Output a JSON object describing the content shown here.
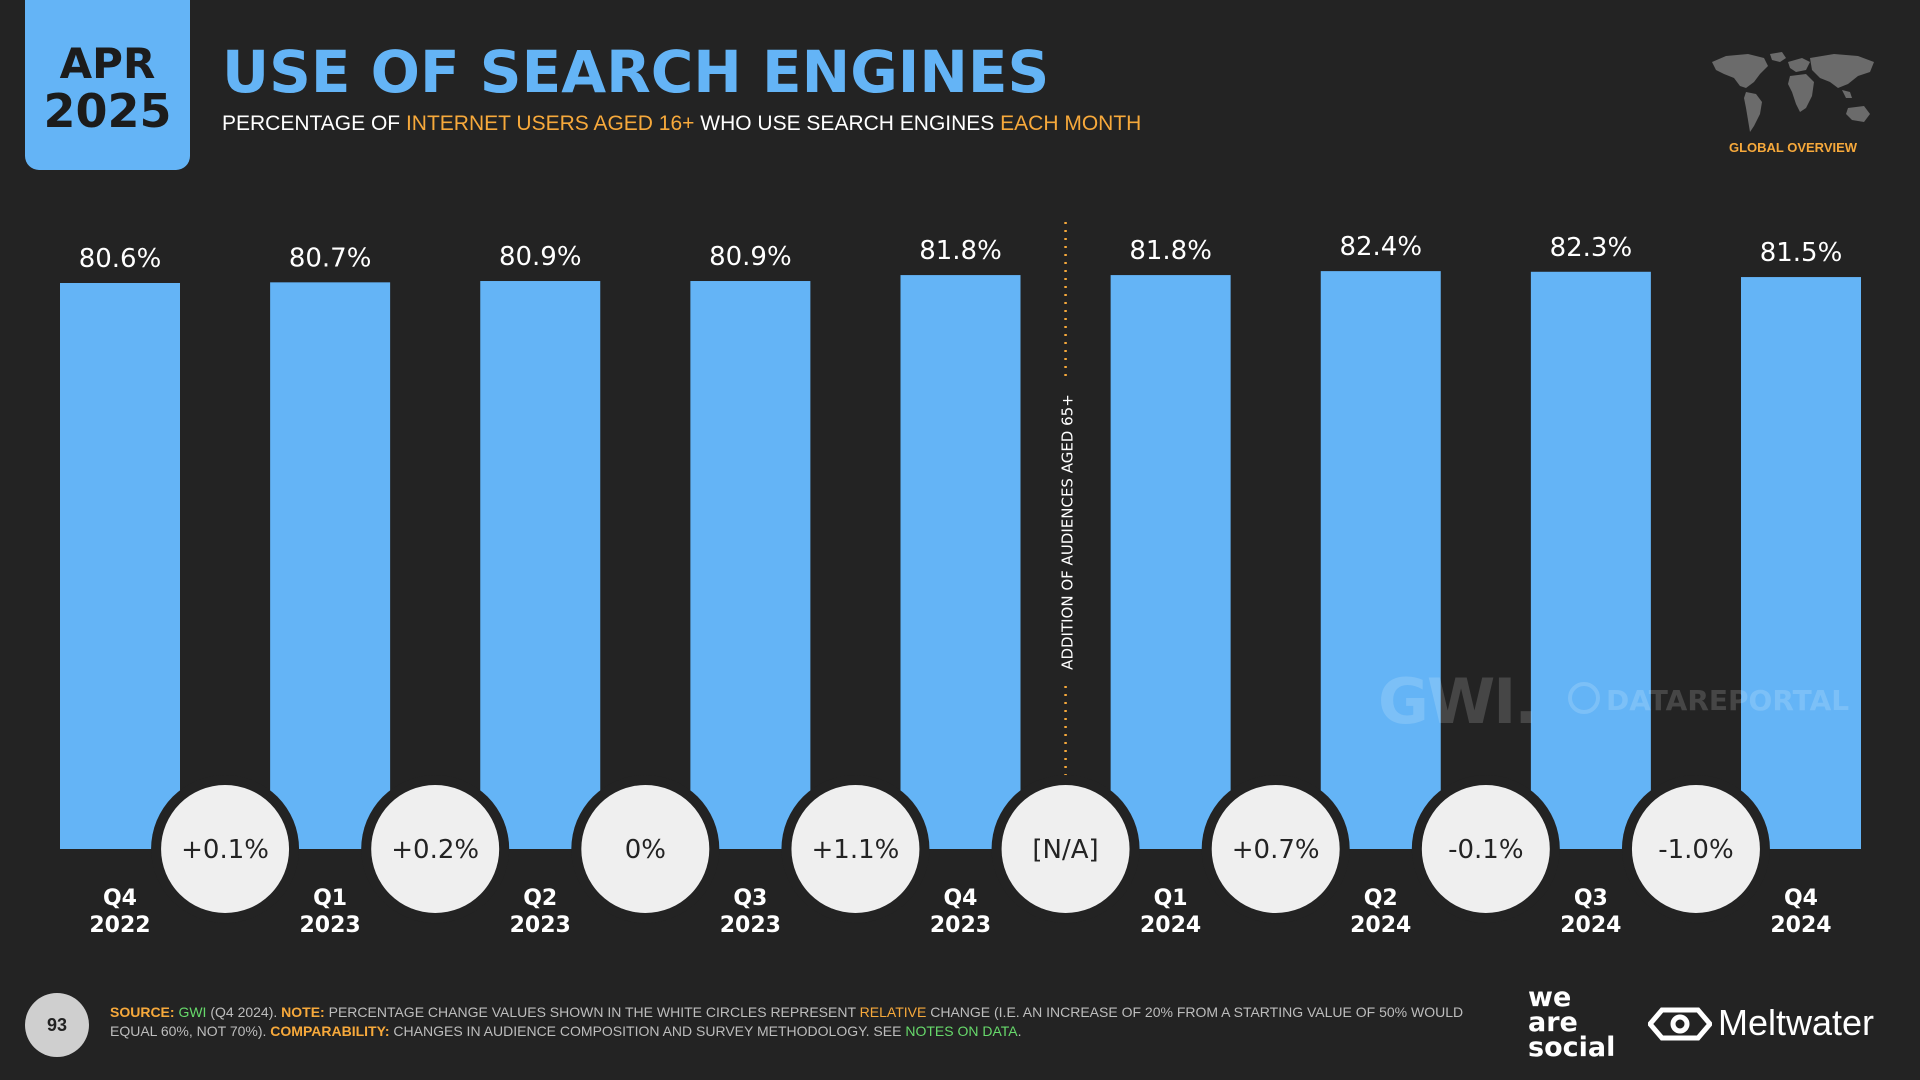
{
  "header": {
    "date_month": "APR",
    "date_year": "2025",
    "title": "USE OF SEARCH ENGINES",
    "subtitle_parts": [
      "PERCENTAGE OF ",
      "INTERNET USERS AGED 16+",
      " WHO USE SEARCH ENGINES ",
      "EACH MONTH"
    ],
    "region_label": "GLOBAL OVERVIEW"
  },
  "chart_data": {
    "type": "bar",
    "categories": [
      "Q4 2022",
      "Q1 2023",
      "Q2 2023",
      "Q3 2023",
      "Q4 2023",
      "Q1 2024",
      "Q2 2024",
      "Q3 2024",
      "Q4 2024"
    ],
    "category_lines": [
      [
        "Q4",
        "2022"
      ],
      [
        "Q1",
        "2023"
      ],
      [
        "Q2",
        "2023"
      ],
      [
        "Q3",
        "2023"
      ],
      [
        "Q4",
        "2023"
      ],
      [
        "Q1",
        "2024"
      ],
      [
        "Q2",
        "2024"
      ],
      [
        "Q3",
        "2024"
      ],
      [
        "Q4",
        "2024"
      ]
    ],
    "values": [
      80.6,
      80.7,
      80.9,
      80.9,
      81.8,
      81.8,
      82.4,
      82.3,
      81.5
    ],
    "value_labels": [
      "80.6%",
      "80.7%",
      "80.9%",
      "80.9%",
      "81.8%",
      "81.8%",
      "82.4%",
      "82.3%",
      "81.5%"
    ],
    "changes": [
      "+0.1%",
      "+0.2%",
      "0%",
      "+1.1%",
      "[N/A]",
      "+0.7%",
      "-0.1%",
      "-1.0%"
    ],
    "annotation": "ADDITION OF AUDIENCES AGED 65+",
    "annotation_after_index": 4,
    "bar_color": "#64b4f6",
    "title": "",
    "xlabel": "",
    "ylabel": ""
  },
  "watermarks": {
    "gwi": "GWI.",
    "datareportal": "DATAREPORTAL"
  },
  "footer": {
    "page_number": "93",
    "source_label": "SOURCE:",
    "source_name": "GWI",
    "source_detail": " (Q4 2024). ",
    "note_label": "NOTE:",
    "note_text_1": " PERCENTAGE CHANGE VALUES SHOWN IN THE WHITE CIRCLES REPRESENT ",
    "note_highlight": "RELATIVE",
    "note_text_2": " CHANGE (I.E. AN INCREASE OF 20% FROM A STARTING VALUE OF 50% WOULD EQUAL 60%, NOT 70%). ",
    "comparability_label": "COMPARABILITY:",
    "comparability_text": " CHANGES IN AUDIENCE COMPOSITION AND SURVEY METHODOLOGY. SEE ",
    "notes_link": "NOTES ON DATA",
    "end": "."
  },
  "brands": {
    "was_line1": "we",
    "was_line2": "are",
    "was_line3": "social",
    "meltwater": "Meltwater"
  },
  "colors": {
    "accent_blue": "#64b4f6",
    "accent_orange": "#f7a93b",
    "link_green": "#67d96b",
    "background": "#232323"
  }
}
